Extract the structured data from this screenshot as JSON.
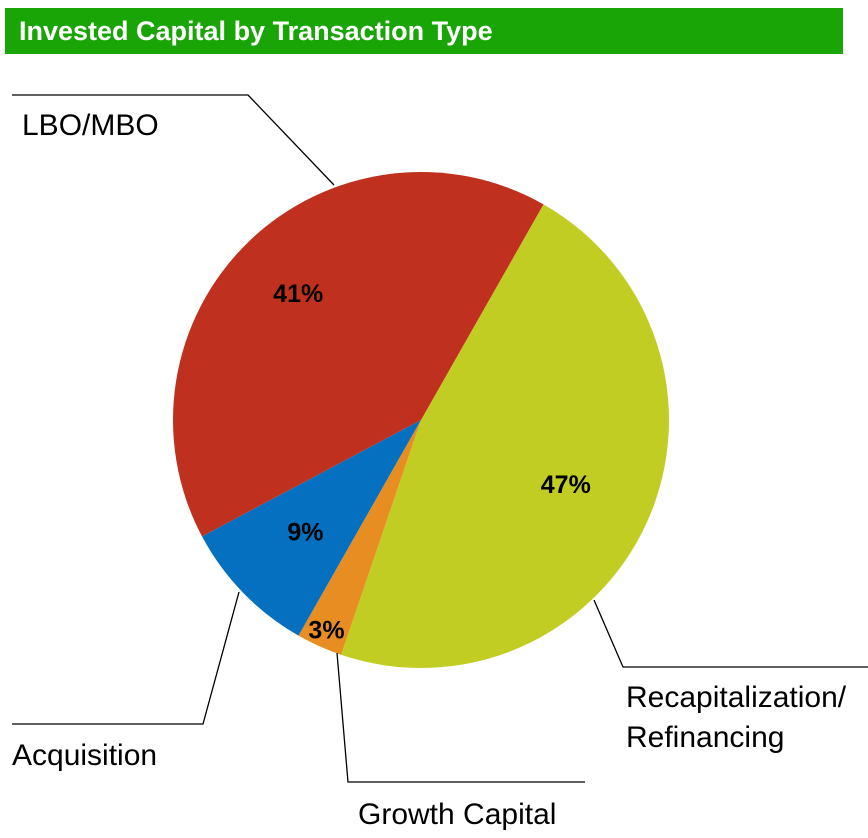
{
  "title": "Invested Capital by Transaction Type",
  "colors": {
    "title_bar": "#1aa507",
    "title_text": "#ffffff",
    "leader_line": "#000000",
    "slice_label": "#000000"
  },
  "chart_data": {
    "type": "pie",
    "title": "Invested Capital by Transaction Type",
    "slices": [
      {
        "label": "Recapitalization/ Refinancing",
        "value": 47,
        "value_label": "47%",
        "color": "#c2cd24"
      },
      {
        "label": "Growth Capital",
        "value": 3,
        "value_label": "3%",
        "color": "#e88d22"
      },
      {
        "label": "Acquisition",
        "value": 9,
        "value_label": "9%",
        "color": "#0670c0"
      },
      {
        "label": "LBO/MBO",
        "value": 41,
        "value_label": "41%",
        "color": "#bf311e"
      }
    ],
    "labels": {
      "recap_line1": "Recapitalization/",
      "recap_line2": "Refinancing",
      "growth": "Growth Capital",
      "acquisition": "Acquisition",
      "lbo": "LBO/MBO"
    },
    "legend": "none",
    "label_style": "leader lines"
  }
}
